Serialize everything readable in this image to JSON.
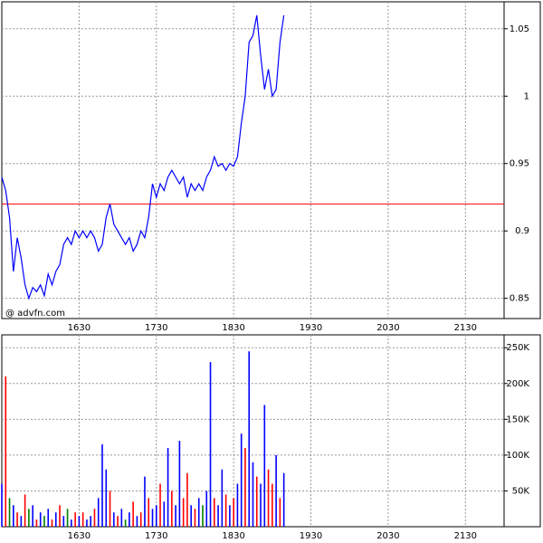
{
  "chart_data": [
    {
      "type": "line",
      "watermark": "@ advfn.com",
      "x": [
        930,
        933,
        936,
        939,
        942,
        945,
        948,
        951,
        954,
        957,
        960,
        963,
        966,
        969,
        972,
        975,
        978,
        981,
        984,
        987,
        990,
        993,
        996,
        999,
        1002,
        1005,
        1008,
        1011,
        1014,
        1017,
        1020,
        1023,
        1026,
        1029,
        1032,
        1035,
        1038,
        1041,
        1044,
        1047,
        1050,
        1053,
        1056,
        1059,
        1062,
        1065,
        1068,
        1071,
        1074,
        1077,
        1080,
        1083,
        1086,
        1089,
        1092,
        1095,
        1098,
        1101,
        1104,
        1107,
        1110,
        1113,
        1116,
        1119,
        1122,
        1125,
        1128,
        1131,
        1134,
        1137,
        1140,
        1143,
        1146,
        1149
      ],
      "series": [
        {
          "color": "#0000ff",
          "values": [
            0.94,
            0.93,
            0.91,
            0.87,
            0.895,
            0.88,
            0.86,
            0.85,
            0.858,
            0.855,
            0.86,
            0.852,
            0.868,
            0.86,
            0.87,
            0.875,
            0.89,
            0.895,
            0.89,
            0.9,
            0.895,
            0.9,
            0.895,
            0.9,
            0.895,
            0.885,
            0.89,
            0.91,
            0.92,
            0.905,
            0.9,
            0.895,
            0.89,
            0.895,
            0.885,
            0.89,
            0.9,
            0.895,
            0.91,
            0.935,
            0.925,
            0.935,
            0.93,
            0.94,
            0.945,
            0.94,
            0.935,
            0.94,
            0.925,
            0.935,
            0.93,
            0.935,
            0.93,
            0.94,
            0.945,
            0.955,
            0.948,
            0.95,
            0.945,
            0.95,
            0.948,
            0.955,
            0.98,
            1.0,
            1.04,
            1.045,
            1.06,
            1.03,
            1.005,
            1.02,
            1.0,
            1.005,
            1.04,
            1.06
          ]
        }
      ],
      "reference": {
        "value": 0.92,
        "color": "#ff0000"
      },
      "xlim": [
        930,
        1320
      ],
      "xticks": [
        {
          "value": 990,
          "label": "1630"
        },
        {
          "value": 1050,
          "label": "1730"
        },
        {
          "value": 1110,
          "label": "1830"
        },
        {
          "value": 1170,
          "label": "1930"
        },
        {
          "value": 1230,
          "label": "2030"
        },
        {
          "value": 1290,
          "label": "2130"
        }
      ],
      "ylim": [
        0.835,
        1.07
      ],
      "yticks": [
        0.85,
        0.9,
        0.95,
        1,
        1.05
      ],
      "grid": true
    },
    {
      "type": "bar",
      "x": [
        930,
        933,
        936,
        939,
        942,
        945,
        948,
        951,
        954,
        957,
        960,
        963,
        966,
        969,
        972,
        975,
        978,
        981,
        984,
        987,
        990,
        993,
        996,
        999,
        1002,
        1005,
        1008,
        1011,
        1014,
        1017,
        1020,
        1023,
        1026,
        1029,
        1032,
        1035,
        1038,
        1041,
        1044,
        1047,
        1050,
        1053,
        1056,
        1059,
        1062,
        1065,
        1068,
        1071,
        1074,
        1077,
        1080,
        1083,
        1086,
        1089,
        1092,
        1095,
        1098,
        1101,
        1104,
        1107,
        1110,
        1113,
        1116,
        1119,
        1122,
        1125,
        1128,
        1131,
        1134,
        1137,
        1140,
        1143,
        1146,
        1149
      ],
      "values": [
        60000,
        210000,
        40000,
        30000,
        20000,
        15000,
        45000,
        25000,
        30000,
        10000,
        20000,
        15000,
        25000,
        10000,
        20000,
        30000,
        15000,
        25000,
        10000,
        20000,
        15000,
        20000,
        10000,
        15000,
        25000,
        40000,
        115000,
        80000,
        50000,
        20000,
        15000,
        25000,
        10000,
        20000,
        35000,
        15000,
        20000,
        70000,
        40000,
        25000,
        30000,
        60000,
        35000,
        110000,
        50000,
        30000,
        120000,
        40000,
        75000,
        30000,
        25000,
        40000,
        30000,
        50000,
        230000,
        40000,
        30000,
        80000,
        45000,
        30000,
        40000,
        60000,
        130000,
        110000,
        245000,
        90000,
        70000,
        60000,
        170000,
        80000,
        60000,
        100000,
        40000,
        75000
      ],
      "colors": [
        "#0000ff",
        "#ff0000",
        "#008000",
        "#0000ff",
        "#ff0000",
        "#0000ff",
        "#ff0000",
        "#008000",
        "#0000ff",
        "#ff0000",
        "#0000ff",
        "#008000",
        "#0000ff",
        "#ff0000",
        "#0000ff",
        "#ff0000",
        "#0000ff",
        "#008000",
        "#0000ff",
        "#ff0000",
        "#0000ff",
        "#ff0000",
        "#0000ff",
        "#0000ff",
        "#ff0000",
        "#0000ff",
        "#0000ff",
        "#0000ff",
        "#ff0000",
        "#0000ff",
        "#ff0000",
        "#0000ff",
        "#008000",
        "#0000ff",
        "#ff0000",
        "#0000ff",
        "#ff0000",
        "#0000ff",
        "#ff0000",
        "#0000ff",
        "#0000ff",
        "#ff0000",
        "#0000ff",
        "#0000ff",
        "#ff0000",
        "#0000ff",
        "#0000ff",
        "#ff0000",
        "#ff0000",
        "#0000ff",
        "#ff0000",
        "#0000ff",
        "#008000",
        "#0000ff",
        "#0000ff",
        "#ff0000",
        "#0000ff",
        "#0000ff",
        "#ff0000",
        "#0000ff",
        "#ff0000",
        "#0000ff",
        "#0000ff",
        "#ff0000",
        "#0000ff",
        "#0000ff",
        "#ff0000",
        "#0000ff",
        "#0000ff",
        "#ff0000",
        "#ff0000",
        "#0000ff",
        "#ff0000",
        "#0000ff"
      ],
      "xlim": [
        930,
        1320
      ],
      "xticks": [
        {
          "value": 990,
          "label": "1630"
        },
        {
          "value": 1050,
          "label": "1730"
        },
        {
          "value": 1110,
          "label": "1830"
        },
        {
          "value": 1170,
          "label": "1930"
        },
        {
          "value": 1230,
          "label": "2030"
        },
        {
          "value": 1290,
          "label": "2130"
        }
      ],
      "ylim": [
        0,
        268000
      ],
      "yticks": [
        {
          "value": 50000,
          "label": "50K"
        },
        {
          "value": 100000,
          "label": "100K"
        },
        {
          "value": 150000,
          "label": "150K"
        },
        {
          "value": 200000,
          "label": "200K"
        },
        {
          "value": 250000,
          "label": "250K"
        }
      ],
      "grid": true
    }
  ]
}
